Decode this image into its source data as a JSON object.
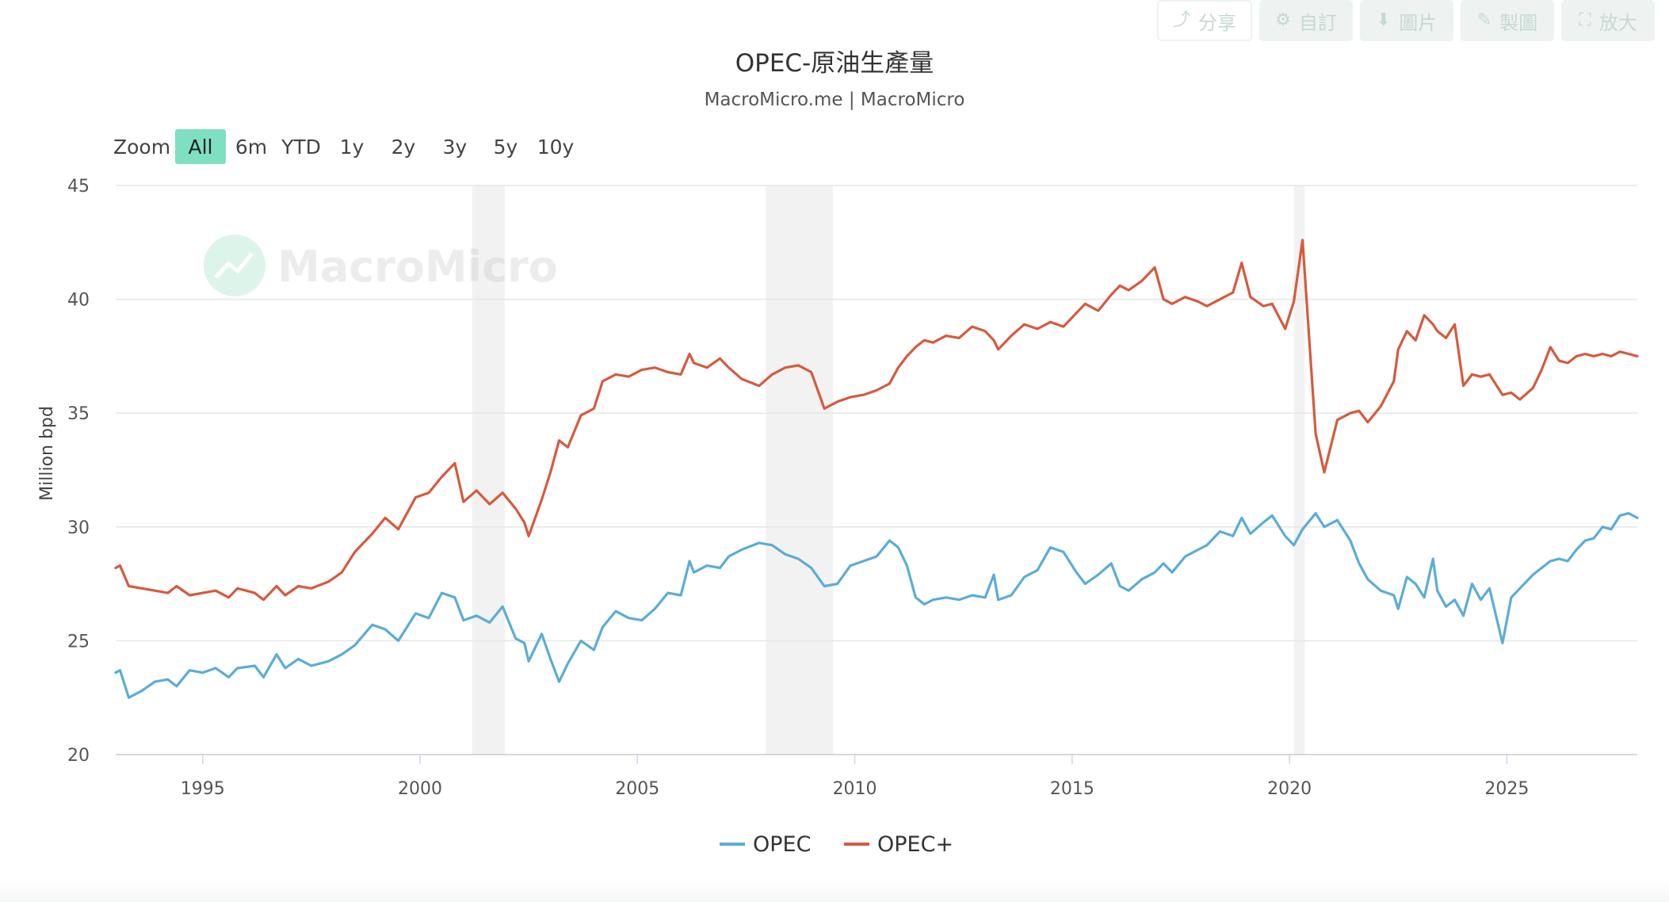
{
  "toolbar": {
    "share_label": "分享",
    "custom_label": "自訂",
    "image_label": "圖片",
    "draw_label": "製圖",
    "fullscreen_label": "放大",
    "icons": {
      "share": "share-icon",
      "custom": "gear-icon",
      "image": "download-icon",
      "draw": "pencil-icon",
      "fullscreen": "expand-icon"
    }
  },
  "zoom": {
    "label": "Zoom",
    "options": [
      "All",
      "6m",
      "YTD",
      "1y",
      "2y",
      "3y",
      "5y",
      "10y"
    ],
    "selected": "All"
  },
  "watermark": {
    "text": "MacroMicro"
  },
  "colors": {
    "opec": "#5aadd6",
    "opec_plus": "#d65a3e",
    "zoom_active": "#7ee0c0",
    "recession_band": "#f2f2f2"
  },
  "chart_data": {
    "type": "line",
    "title": "OPEC-原油生產量",
    "subtitle": "MacroMicro.me | MacroMicro",
    "ylabel": "Million bpd",
    "xlabel": "",
    "ylim": [
      20,
      45
    ],
    "yticks": [
      20,
      25,
      30,
      35,
      40,
      45
    ],
    "xlim": [
      1993.0,
      2028.0
    ],
    "xticks": [
      1995,
      2000,
      2005,
      2010,
      2015,
      2020,
      2025
    ],
    "grid": "horizontal",
    "legend_position": "bottom-center",
    "shaded_periods": [
      [
        2001.2,
        2001.95
      ],
      [
        2007.95,
        2009.5
      ],
      [
        2020.1,
        2020.35
      ]
    ],
    "series": [
      {
        "name": "OPEC",
        "color": "#5aadd6",
        "points": [
          [
            1993.0,
            23.6
          ],
          [
            1993.1,
            23.7
          ],
          [
            1993.3,
            22.5
          ],
          [
            1993.6,
            22.8
          ],
          [
            1993.9,
            23.2
          ],
          [
            1994.2,
            23.3
          ],
          [
            1994.4,
            23.0
          ],
          [
            1994.7,
            23.7
          ],
          [
            1995.0,
            23.6
          ],
          [
            1995.3,
            23.8
          ],
          [
            1995.6,
            23.4
          ],
          [
            1995.8,
            23.8
          ],
          [
            1996.2,
            23.9
          ],
          [
            1996.4,
            23.4
          ],
          [
            1996.7,
            24.4
          ],
          [
            1996.9,
            23.8
          ],
          [
            1997.2,
            24.2
          ],
          [
            1997.5,
            23.9
          ],
          [
            1997.9,
            24.1
          ],
          [
            1998.2,
            24.4
          ],
          [
            1998.5,
            24.8
          ],
          [
            1998.9,
            25.7
          ],
          [
            1999.2,
            25.5
          ],
          [
            1999.5,
            25.0
          ],
          [
            1999.9,
            26.2
          ],
          [
            2000.2,
            26.0
          ],
          [
            2000.5,
            27.1
          ],
          [
            2000.8,
            26.9
          ],
          [
            2001.0,
            25.9
          ],
          [
            2001.3,
            26.1
          ],
          [
            2001.6,
            25.8
          ],
          [
            2001.9,
            26.5
          ],
          [
            2002.2,
            25.1
          ],
          [
            2002.4,
            24.9
          ],
          [
            2002.5,
            24.1
          ],
          [
            2002.8,
            25.3
          ],
          [
            2003.0,
            24.2
          ],
          [
            2003.2,
            23.2
          ],
          [
            2003.4,
            24.0
          ],
          [
            2003.7,
            25.0
          ],
          [
            2004.0,
            24.6
          ],
          [
            2004.2,
            25.6
          ],
          [
            2004.5,
            26.3
          ],
          [
            2004.8,
            26.0
          ],
          [
            2005.1,
            25.9
          ],
          [
            2005.4,
            26.4
          ],
          [
            2005.7,
            27.1
          ],
          [
            2006.0,
            27.0
          ],
          [
            2006.2,
            28.5
          ],
          [
            2006.3,
            28.0
          ],
          [
            2006.6,
            28.3
          ],
          [
            2006.9,
            28.2
          ],
          [
            2007.1,
            28.7
          ],
          [
            2007.4,
            29.0
          ],
          [
            2007.8,
            29.3
          ],
          [
            2008.1,
            29.2
          ],
          [
            2008.4,
            28.8
          ],
          [
            2008.7,
            28.6
          ],
          [
            2009.0,
            28.2
          ],
          [
            2009.3,
            27.4
          ],
          [
            2009.6,
            27.5
          ],
          [
            2009.9,
            28.3
          ],
          [
            2010.2,
            28.5
          ],
          [
            2010.5,
            28.7
          ],
          [
            2010.8,
            29.4
          ],
          [
            2011.0,
            29.1
          ],
          [
            2011.2,
            28.3
          ],
          [
            2011.4,
            26.9
          ],
          [
            2011.6,
            26.6
          ],
          [
            2011.8,
            26.8
          ],
          [
            2012.1,
            26.9
          ],
          [
            2012.4,
            26.8
          ],
          [
            2012.7,
            27.0
          ],
          [
            2013.0,
            26.9
          ],
          [
            2013.2,
            27.9
          ],
          [
            2013.3,
            26.8
          ],
          [
            2013.6,
            27.0
          ],
          [
            2013.9,
            27.8
          ],
          [
            2014.2,
            28.1
          ],
          [
            2014.5,
            29.1
          ],
          [
            2014.8,
            28.9
          ],
          [
            2015.1,
            28.0
          ],
          [
            2015.3,
            27.5
          ],
          [
            2015.6,
            27.9
          ],
          [
            2015.9,
            28.4
          ],
          [
            2016.1,
            27.4
          ],
          [
            2016.3,
            27.2
          ],
          [
            2016.6,
            27.7
          ],
          [
            2016.9,
            28.0
          ],
          [
            2017.1,
            28.4
          ],
          [
            2017.3,
            28.0
          ],
          [
            2017.6,
            28.7
          ],
          [
            2017.9,
            29.0
          ],
          [
            2018.1,
            29.2
          ],
          [
            2018.4,
            29.8
          ],
          [
            2018.7,
            29.6
          ],
          [
            2018.9,
            30.4
          ],
          [
            2019.1,
            29.7
          ],
          [
            2019.4,
            30.2
          ],
          [
            2019.6,
            30.5
          ],
          [
            2019.9,
            29.6
          ],
          [
            2020.1,
            29.2
          ],
          [
            2020.3,
            29.9
          ],
          [
            2020.6,
            30.6
          ],
          [
            2020.8,
            30.0
          ],
          [
            2021.1,
            30.3
          ],
          [
            2021.4,
            29.4
          ],
          [
            2021.6,
            28.4
          ],
          [
            2021.8,
            27.7
          ],
          [
            2022.1,
            27.2
          ],
          [
            2022.4,
            27.0
          ],
          [
            2022.5,
            26.4
          ],
          [
            2022.7,
            27.8
          ],
          [
            2022.9,
            27.5
          ],
          [
            2023.1,
            26.9
          ],
          [
            2023.3,
            28.6
          ],
          [
            2023.4,
            27.2
          ],
          [
            2023.6,
            26.5
          ],
          [
            2023.8,
            26.8
          ],
          [
            2024.0,
            26.1
          ],
          [
            2024.2,
            27.5
          ],
          [
            2024.4,
            26.8
          ],
          [
            2024.6,
            27.3
          ],
          [
            2024.9,
            24.9
          ],
          [
            2025.1,
            26.9
          ],
          [
            2025.3,
            27.3
          ],
          [
            2025.6,
            27.9
          ],
          [
            2025.8,
            28.2
          ],
          [
            2026.0,
            28.5
          ],
          [
            2026.2,
            28.6
          ],
          [
            2026.4,
            28.5
          ],
          [
            2026.6,
            29.0
          ],
          [
            2026.8,
            29.4
          ],
          [
            2027.0,
            29.5
          ],
          [
            2027.2,
            30.0
          ],
          [
            2027.4,
            29.9
          ],
          [
            2027.6,
            30.5
          ],
          [
            2027.8,
            30.6
          ],
          [
            2028.0,
            30.4
          ]
        ]
      },
      {
        "name": "OPEC+",
        "color": "#d65a3e",
        "points": [
          [
            1993.0,
            28.2
          ],
          [
            1993.1,
            28.3
          ],
          [
            1993.3,
            27.4
          ],
          [
            1993.6,
            27.3
          ],
          [
            1993.9,
            27.2
          ],
          [
            1994.2,
            27.1
          ],
          [
            1994.4,
            27.4
          ],
          [
            1994.7,
            27.0
          ],
          [
            1995.0,
            27.1
          ],
          [
            1995.3,
            27.2
          ],
          [
            1995.6,
            26.9
          ],
          [
            1995.8,
            27.3
          ],
          [
            1996.2,
            27.1
          ],
          [
            1996.4,
            26.8
          ],
          [
            1996.7,
            27.4
          ],
          [
            1996.9,
            27.0
          ],
          [
            1997.2,
            27.4
          ],
          [
            1997.5,
            27.3
          ],
          [
            1997.9,
            27.6
          ],
          [
            1998.2,
            28.0
          ],
          [
            1998.5,
            28.9
          ],
          [
            1998.9,
            29.7
          ],
          [
            1999.2,
            30.4
          ],
          [
            1999.5,
            29.9
          ],
          [
            1999.9,
            31.3
          ],
          [
            2000.2,
            31.5
          ],
          [
            2000.5,
            32.2
          ],
          [
            2000.8,
            32.8
          ],
          [
            2001.0,
            31.1
          ],
          [
            2001.3,
            31.6
          ],
          [
            2001.6,
            31.0
          ],
          [
            2001.9,
            31.5
          ],
          [
            2002.2,
            30.8
          ],
          [
            2002.4,
            30.2
          ],
          [
            2002.5,
            29.6
          ],
          [
            2002.8,
            31.2
          ],
          [
            2003.0,
            32.4
          ],
          [
            2003.2,
            33.8
          ],
          [
            2003.4,
            33.5
          ],
          [
            2003.7,
            34.9
          ],
          [
            2004.0,
            35.2
          ],
          [
            2004.2,
            36.4
          ],
          [
            2004.5,
            36.7
          ],
          [
            2004.8,
            36.6
          ],
          [
            2005.1,
            36.9
          ],
          [
            2005.4,
            37.0
          ],
          [
            2005.7,
            36.8
          ],
          [
            2006.0,
            36.7
          ],
          [
            2006.2,
            37.6
          ],
          [
            2006.3,
            37.2
          ],
          [
            2006.6,
            37.0
          ],
          [
            2006.9,
            37.4
          ],
          [
            2007.1,
            37.0
          ],
          [
            2007.4,
            36.5
          ],
          [
            2007.8,
            36.2
          ],
          [
            2008.1,
            36.7
          ],
          [
            2008.4,
            37.0
          ],
          [
            2008.7,
            37.1
          ],
          [
            2009.0,
            36.8
          ],
          [
            2009.3,
            35.2
          ],
          [
            2009.6,
            35.5
          ],
          [
            2009.9,
            35.7
          ],
          [
            2010.2,
            35.8
          ],
          [
            2010.5,
            36.0
          ],
          [
            2010.8,
            36.3
          ],
          [
            2011.0,
            37.0
          ],
          [
            2011.2,
            37.5
          ],
          [
            2011.4,
            37.9
          ],
          [
            2011.6,
            38.2
          ],
          [
            2011.8,
            38.1
          ],
          [
            2012.1,
            38.4
          ],
          [
            2012.4,
            38.3
          ],
          [
            2012.7,
            38.8
          ],
          [
            2013.0,
            38.6
          ],
          [
            2013.2,
            38.2
          ],
          [
            2013.3,
            37.8
          ],
          [
            2013.6,
            38.4
          ],
          [
            2013.9,
            38.9
          ],
          [
            2014.2,
            38.7
          ],
          [
            2014.5,
            39.0
          ],
          [
            2014.8,
            38.8
          ],
          [
            2015.1,
            39.4
          ],
          [
            2015.3,
            39.8
          ],
          [
            2015.6,
            39.5
          ],
          [
            2015.9,
            40.2
          ],
          [
            2016.1,
            40.6
          ],
          [
            2016.3,
            40.4
          ],
          [
            2016.6,
            40.8
          ],
          [
            2016.9,
            41.4
          ],
          [
            2017.1,
            40.0
          ],
          [
            2017.3,
            39.8
          ],
          [
            2017.6,
            40.1
          ],
          [
            2017.9,
            39.9
          ],
          [
            2018.1,
            39.7
          ],
          [
            2018.4,
            40.0
          ],
          [
            2018.7,
            40.3
          ],
          [
            2018.9,
            41.6
          ],
          [
            2019.1,
            40.1
          ],
          [
            2019.4,
            39.7
          ],
          [
            2019.6,
            39.8
          ],
          [
            2019.9,
            38.7
          ],
          [
            2020.1,
            39.9
          ],
          [
            2020.3,
            42.6
          ],
          [
            2020.6,
            34.1
          ],
          [
            2020.8,
            32.4
          ],
          [
            2021.1,
            34.7
          ],
          [
            2021.4,
            35.0
          ],
          [
            2021.6,
            35.1
          ],
          [
            2021.8,
            34.6
          ],
          [
            2022.1,
            35.3
          ],
          [
            2022.4,
            36.4
          ],
          [
            2022.5,
            37.8
          ],
          [
            2022.7,
            38.6
          ],
          [
            2022.9,
            38.2
          ],
          [
            2023.1,
            39.3
          ],
          [
            2023.3,
            38.9
          ],
          [
            2023.4,
            38.6
          ],
          [
            2023.6,
            38.3
          ],
          [
            2023.8,
            38.9
          ],
          [
            2024.0,
            36.2
          ],
          [
            2024.2,
            36.7
          ],
          [
            2024.4,
            36.6
          ],
          [
            2024.6,
            36.7
          ],
          [
            2024.9,
            35.8
          ],
          [
            2025.1,
            35.9
          ],
          [
            2025.3,
            35.6
          ],
          [
            2025.6,
            36.1
          ],
          [
            2025.8,
            36.9
          ],
          [
            2026.0,
            37.9
          ],
          [
            2026.2,
            37.3
          ],
          [
            2026.4,
            37.2
          ],
          [
            2026.6,
            37.5
          ],
          [
            2026.8,
            37.6
          ],
          [
            2027.0,
            37.5
          ],
          [
            2027.2,
            37.6
          ],
          [
            2027.4,
            37.5
          ],
          [
            2027.6,
            37.7
          ],
          [
            2027.8,
            37.6
          ],
          [
            2028.0,
            37.5
          ]
        ]
      }
    ]
  }
}
